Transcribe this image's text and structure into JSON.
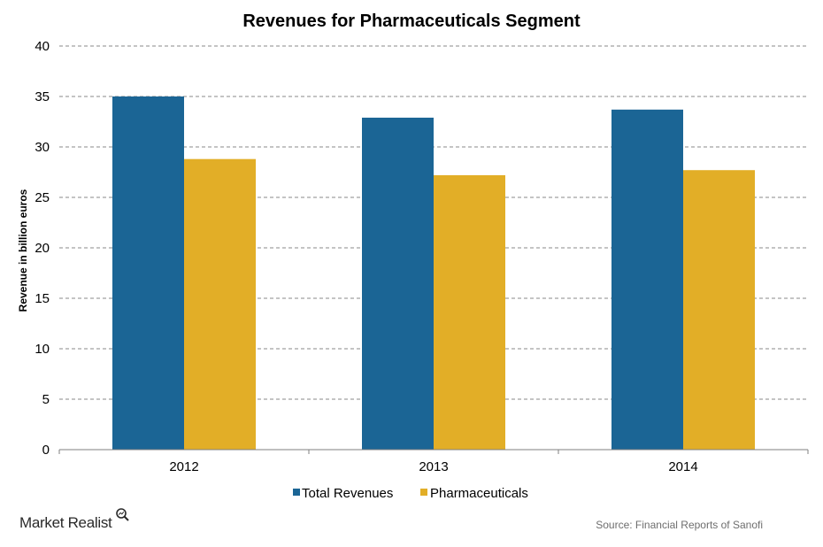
{
  "chart_data": {
    "type": "bar",
    "title": "Revenues for Pharmaceuticals Segment",
    "xlabel": "",
    "ylabel": "Revenue in billion euros",
    "categories": [
      "2012",
      "2013",
      "2014"
    ],
    "series": [
      {
        "name": "Total Revenues",
        "color": "#1b6595",
        "values": [
          35.0,
          32.9,
          33.7
        ]
      },
      {
        "name": "Pharmaceuticals",
        "color": "#e2ae27",
        "values": [
          28.8,
          27.2,
          27.7
        ]
      }
    ],
    "ylim": [
      0,
      40
    ],
    "yticks": [
      "0",
      "5",
      "10",
      "15",
      "20",
      "25",
      "30",
      "35",
      "40"
    ],
    "grid": true,
    "grid_style": "dashed",
    "legend_position": "bottom-center"
  },
  "footer": {
    "brand": "Market Realist",
    "source": "Source: Financial Reports of Sanofi"
  }
}
